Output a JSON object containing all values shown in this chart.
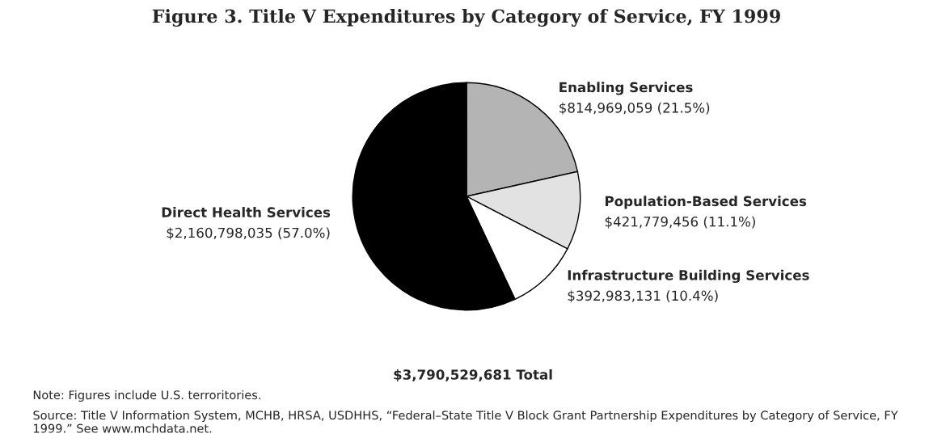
{
  "chart_data": {
    "type": "pie",
    "title": "Figure 3. Title V Expenditures by Category of Service, FY 1999",
    "categories": [
      "Enabling Services",
      "Population-Based Services",
      "Infrastructure Building Services",
      "Direct Health Services"
    ],
    "values": [
      814969059,
      421779456,
      392983131,
      2160798035
    ],
    "colors": [
      "#b4b4b4",
      "#e2e2e2",
      "#ffffff",
      "#000000"
    ],
    "value_labels": [
      "$814,969,059 (21.5%)",
      "$421,779,456 (11.1%)",
      "$392,983,131 (10.4%)",
      "$2,160,798,035 (57.0%)"
    ],
    "annotations": [
      "$3,790,529,681 Total",
      "Note: Figures include U.S. terroritories.",
      "Source: Title V Information System, MCHB, HRSA, USDHHS, “Federal–State Title V Block Grant Partnership Expenditures by Category of Service, FY 1999.” See www.mchdata.net."
    ]
  }
}
